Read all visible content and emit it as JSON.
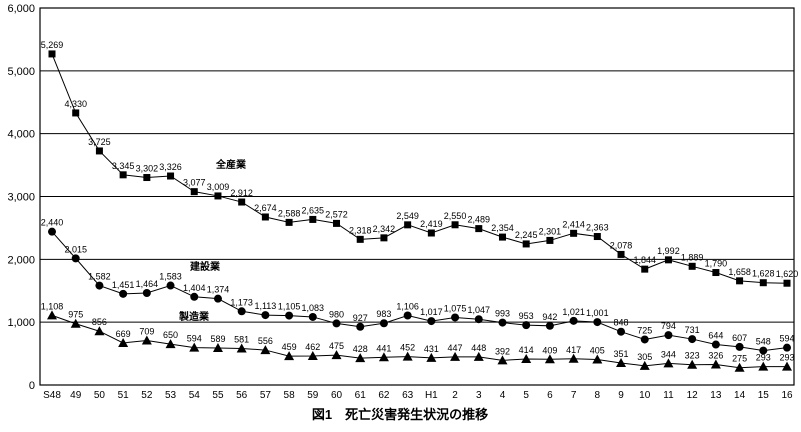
{
  "title": "図1　死亡災害発生状況の推移",
  "colors": {
    "line": "#000000",
    "marker": "#000000",
    "grid": "#000000",
    "background": "#ffffff"
  },
  "chart_data": {
    "type": "line",
    "title": "図1　死亡災害発生状況の推移",
    "xlabel": "",
    "ylabel": "",
    "ylim": [
      0,
      6000
    ],
    "ytick_step": 1000,
    "grid": true,
    "legend_position": "inline-annotations",
    "categories": [
      "S48",
      "49",
      "50",
      "51",
      "52",
      "53",
      "54",
      "55",
      "56",
      "57",
      "58",
      "59",
      "60",
      "61",
      "62",
      "63",
      "H1",
      "2",
      "3",
      "4",
      "5",
      "6",
      "7",
      "8",
      "9",
      "10",
      "11",
      "12",
      "13",
      "14",
      "15",
      "16"
    ],
    "series": [
      {
        "id": "all-industries",
        "name": "全産業",
        "marker": "square",
        "values": [
          5269,
          4330,
          3725,
          3345,
          3302,
          3326,
          3077,
          3009,
          2912,
          2674,
          2588,
          2635,
          2572,
          2318,
          2342,
          2549,
          2419,
          2550,
          2489,
          2354,
          2245,
          2301,
          2414,
          2363,
          2078,
          1844,
          1992,
          1889,
          1790,
          1658,
          1628,
          1620
        ]
      },
      {
        "id": "construction",
        "name": "建設業",
        "marker": "circle",
        "values": [
          2440,
          2015,
          1582,
          1451,
          1464,
          1583,
          1404,
          1374,
          1173,
          1113,
          1105,
          1083,
          980,
          927,
          983,
          1106,
          1017,
          1075,
          1047,
          993,
          953,
          942,
          1021,
          1001,
          848,
          725,
          794,
          731,
          644,
          607,
          548,
          594
        ]
      },
      {
        "id": "manufacturing",
        "name": "製造業",
        "marker": "triangle",
        "values": [
          1108,
          975,
          856,
          669,
          709,
          650,
          594,
          589,
          581,
          556,
          459,
          462,
          475,
          428,
          441,
          452,
          431,
          447,
          448,
          392,
          414,
          409,
          417,
          405,
          351,
          305,
          344,
          323,
          326,
          275,
          293,
          293
        ]
      }
    ],
    "annotations": [
      {
        "text": "全産業",
        "x": 216,
        "y": 168
      },
      {
        "text": "建設業",
        "x": 190,
        "y": 270
      },
      {
        "text": "製造業",
        "x": 179,
        "y": 320
      }
    ]
  }
}
